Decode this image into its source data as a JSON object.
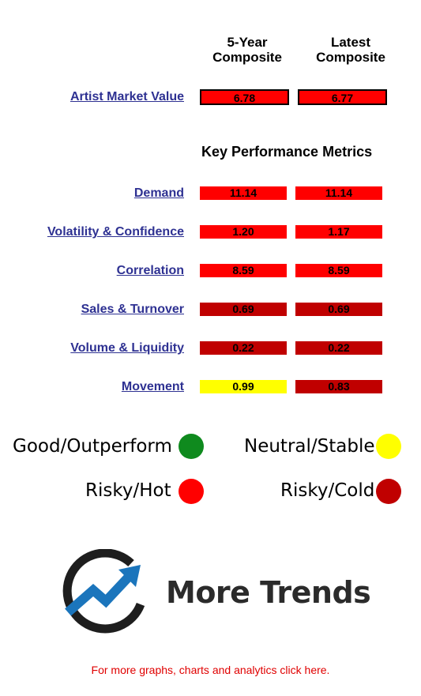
{
  "header": {
    "col1_line1": "5-Year",
    "col1_line2": "Composite",
    "col2_line1": "Latest",
    "col2_line2": "Composite"
  },
  "artist_market_value": {
    "label": "Artist Market Value",
    "five_year": "6.78",
    "latest": "6.77"
  },
  "kpm_title": "Key Performance Metrics",
  "metrics": [
    {
      "label": "Demand",
      "five_year": "11.14",
      "latest": "11.14"
    },
    {
      "label": "Volatility & Confidence",
      "five_year": "1.20",
      "latest": "1.17"
    },
    {
      "label": "Correlation",
      "five_year": "8.59",
      "latest": "8.59"
    },
    {
      "label": "Sales & Turnover",
      "five_year": "0.69",
      "latest": "0.69"
    },
    {
      "label": "Volume & Liquidity",
      "five_year": "0.22",
      "latest": "0.22"
    },
    {
      "label": "Movement",
      "five_year": "0.99",
      "latest": "0.83"
    }
  ],
  "legend": {
    "good": "Good/Outperform",
    "neutral": "Neutral/Stable",
    "risky_hot": "Risky/Hot",
    "risky_cold": "Risky/Cold"
  },
  "colors": {
    "good": "#0f8a1e",
    "neutral": "#ffff00",
    "risky_hot": "#ff0000",
    "risky_cold": "#c00000",
    "link": "#2e3192"
  },
  "logo": {
    "icon": "trend-arrow-circle-icon",
    "text": "More Trends"
  },
  "footer_link": "For more graphs, charts and analytics click here."
}
